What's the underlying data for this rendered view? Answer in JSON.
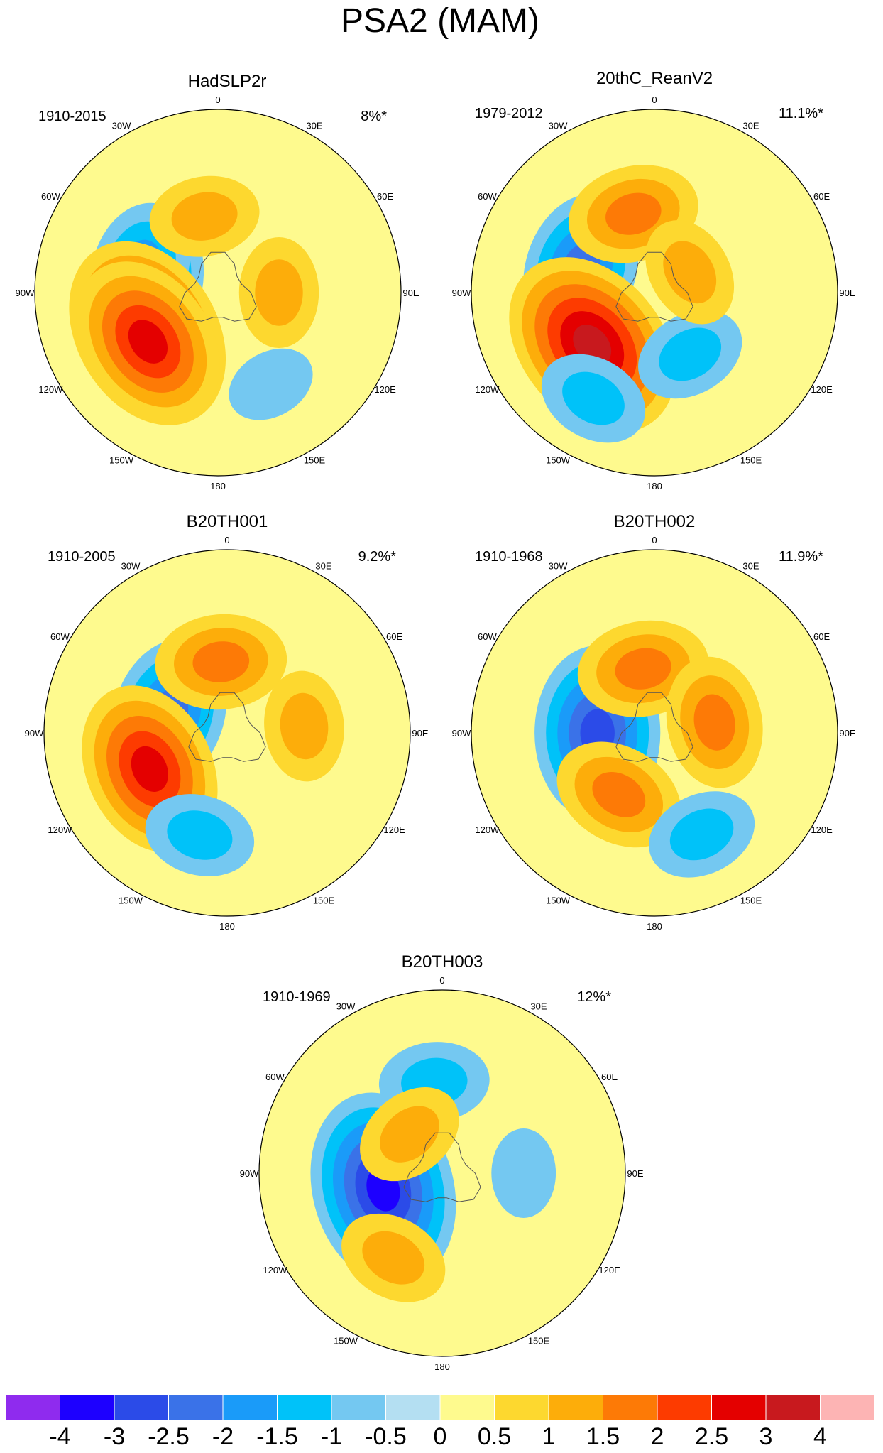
{
  "title": "PSA2 (MAM)",
  "colorbar": {
    "colors": [
      "#8f2bee",
      "#1d00ff",
      "#2b4be8",
      "#3a72e8",
      "#1a9bf9",
      "#00c2f9",
      "#74c8f1",
      "#b4dff2",
      "#fefa8e",
      "#fdd82f",
      "#fdad0a",
      "#fd7a06",
      "#fd3b00",
      "#e40000",
      "#c8191e",
      "#fdb4b4"
    ],
    "labels": [
      "-4",
      "-3",
      "-2.5",
      "-2",
      "-1.5",
      "-1",
      "-0.5",
      "0",
      "0.5",
      "1",
      "1.5",
      "2",
      "2.5",
      "3",
      "4"
    ]
  },
  "panels": [
    {
      "title": "HadSLP2r",
      "period": "1910-2015",
      "variance": "8%*",
      "features": [
        {
          "lon": 80,
          "lat": -55,
          "value": -2.0
        },
        {
          "lon": 72,
          "lat": -50,
          "value": -1.5
        },
        {
          "lon": 120,
          "lat": -50,
          "value": 3.0
        },
        {
          "lon": 125,
          "lat": -48,
          "value": 2.5
        },
        {
          "lon": 10,
          "lat": -52,
          "value": 1.0
        },
        {
          "lon": -90,
          "lat": -60,
          "value": 1.0
        },
        {
          "lon": -150,
          "lat": -38,
          "value": -0.5
        }
      ]
    },
    {
      "title": "20thC_ReanV2",
      "period": "1979-2012",
      "variance": "11.1%*",
      "features": [
        {
          "lon": 72,
          "lat": -52,
          "value": -2.0
        },
        {
          "lon": 130,
          "lat": -50,
          "value": 3.0
        },
        {
          "lon": 15,
          "lat": -50,
          "value": 1.5
        },
        {
          "lon": -150,
          "lat": -55,
          "value": -1.0
        },
        {
          "lon": 150,
          "lat": -30,
          "value": -1.0
        },
        {
          "lon": -60,
          "lat": -70,
          "value": 1.0
        }
      ]
    },
    {
      "title": "B20TH001",
      "period": "1910-2005",
      "variance": "9.2%*",
      "features": [
        {
          "lon": 72,
          "lat": -60,
          "value": -2.0
        },
        {
          "lon": 115,
          "lat": -48,
          "value": 2.5
        },
        {
          "lon": 5,
          "lat": -55,
          "value": 1.5
        },
        {
          "lon": -85,
          "lat": -52,
          "value": 1.0
        },
        {
          "lon": 165,
          "lat": -38,
          "value": -1.0
        }
      ]
    },
    {
      "title": "B20TH002",
      "period": "1910-1968",
      "variance": "11.9%*",
      "features": [
        {
          "lon": 90,
          "lat": -62,
          "value": -2.5
        },
        {
          "lon": 150,
          "lat": -55,
          "value": 1.5
        },
        {
          "lon": 10,
          "lat": -58,
          "value": 1.5
        },
        {
          "lon": -80,
          "lat": -60,
          "value": 1.5
        },
        {
          "lon": -155,
          "lat": -35,
          "value": -1.0
        }
      ]
    },
    {
      "title": "B20TH003",
      "period": "1910-1969",
      "variance": "12%*",
      "features": [
        {
          "lon": 105,
          "lat": -60,
          "value": -3.0
        },
        {
          "lon": 5,
          "lat": -45,
          "value": -1.0
        },
        {
          "lon": 40,
          "lat": -65,
          "value": 1.0
        },
        {
          "lon": 150,
          "lat": -42,
          "value": 1.0
        },
        {
          "lon": -90,
          "lat": -50,
          "value": -0.5
        }
      ]
    }
  ],
  "lon_labels": [
    "0",
    "30E",
    "60E",
    "90E",
    "120E",
    "150E",
    "180",
    "150W",
    "120W",
    "90W",
    "60W",
    "30W"
  ]
}
